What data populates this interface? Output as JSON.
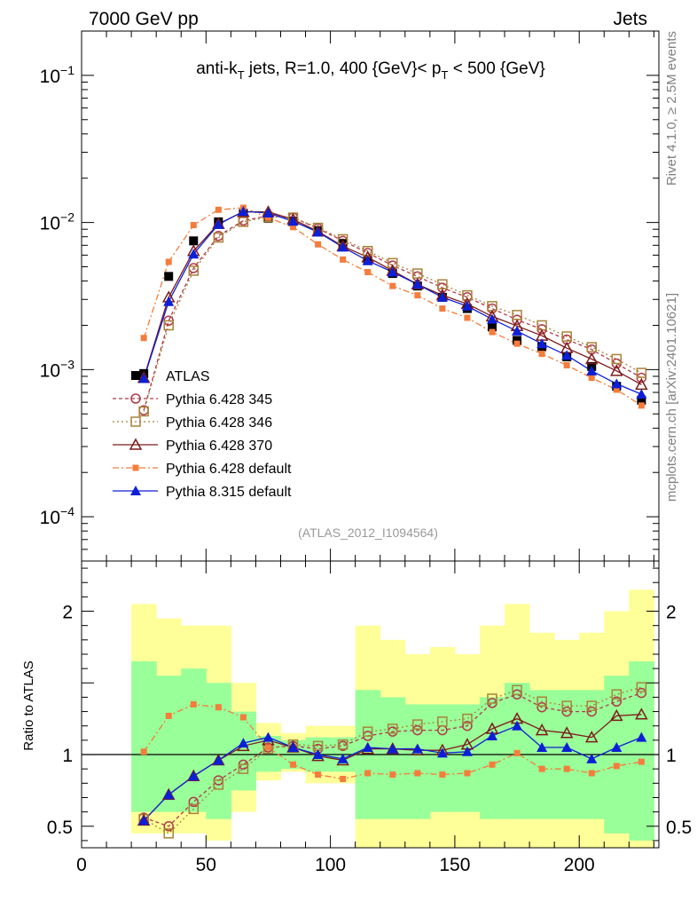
{
  "header": {
    "left": "7000 GeV pp",
    "right": "Jets"
  },
  "side": {
    "rivet": "Rivet 4.1.0, ≥ 2.5M events",
    "mcplots": "mcplots.cern.ch [arXiv:2401.10621]"
  },
  "chart_data": {
    "type": "line",
    "title": "anti-kT jets, R=1.0, 400 {GeV}< pT < 500 {GeV}",
    "title_parts": {
      "a": "anti-k",
      "a_sub": "T",
      "b": " jets, R=1.0, 400 {GeV}< p",
      "b_sub": "T",
      "c": " < 500 {GeV}"
    },
    "analysis_id": "(ATLAS_2012_I1094564)",
    "xlim": [
      0,
      232
    ],
    "ylim_top": [
      5e-05,
      0.2
    ],
    "ylim_ratio": [
      0.35,
      2.35
    ],
    "ratio_ylabel": "Ratio to ATLAS",
    "x_ticks": [
      "0",
      "50",
      "100",
      "150",
      "200"
    ],
    "x_tick_values": [
      0,
      50,
      100,
      150,
      200
    ],
    "y_ticks_top": [
      {
        "value": 0.1,
        "base": "10",
        "exp": "−1"
      },
      {
        "value": 0.01,
        "base": "10",
        "exp": "−2"
      },
      {
        "value": 0.001,
        "base": "10",
        "exp": "−3"
      },
      {
        "value": 0.0001,
        "base": "10",
        "exp": "−4"
      }
    ],
    "y_ticks_ratio": [
      {
        "value": 2,
        "label": "2"
      },
      {
        "value": 1,
        "label": "1"
      },
      {
        "value": 0.5,
        "label": "0.5"
      }
    ],
    "x": [
      25,
      35,
      45,
      55,
      65,
      75,
      85,
      95,
      105,
      115,
      125,
      135,
      145,
      155,
      165,
      175,
      185,
      195,
      205,
      215,
      225
    ],
    "band_edges": [
      20,
      30,
      40,
      50,
      60,
      70,
      80,
      90,
      100,
      110,
      120,
      130,
      140,
      150,
      160,
      170,
      180,
      190,
      200,
      210,
      220,
      230
    ],
    "band_yellow": [
      [
        0.45,
        2.05
      ],
      [
        0.45,
        1.95
      ],
      [
        0.45,
        1.9
      ],
      [
        0.4,
        1.9
      ],
      [
        0.6,
        1.5
      ],
      [
        0.82,
        1.22
      ],
      [
        0.88,
        1.15
      ],
      [
        0.8,
        1.2
      ],
      [
        0.8,
        1.2
      ],
      [
        0.3,
        1.9
      ],
      [
        0.3,
        1.8
      ],
      [
        0.3,
        1.7
      ],
      [
        0.3,
        1.75
      ],
      [
        0.3,
        1.7
      ],
      [
        0.3,
        1.9
      ],
      [
        0.3,
        2.05
      ],
      [
        0.3,
        1.85
      ],
      [
        0.3,
        1.8
      ],
      [
        0.3,
        1.85
      ],
      [
        0.3,
        2.0
      ],
      [
        0.3,
        2.15
      ]
    ],
    "band_green": [
      [
        0.6,
        1.65
      ],
      [
        0.6,
        1.55
      ],
      [
        0.6,
        1.6
      ],
      [
        0.55,
        1.5
      ],
      [
        0.75,
        1.3
      ],
      [
        0.88,
        1.13
      ],
      [
        0.9,
        1.1
      ],
      [
        0.88,
        1.12
      ],
      [
        0.88,
        1.12
      ],
      [
        0.55,
        1.45
      ],
      [
        0.55,
        1.4
      ],
      [
        0.55,
        1.35
      ],
      [
        0.6,
        1.35
      ],
      [
        0.6,
        1.35
      ],
      [
        0.55,
        1.4
      ],
      [
        0.55,
        1.5
      ],
      [
        0.55,
        1.45
      ],
      [
        0.55,
        1.45
      ],
      [
        0.55,
        1.45
      ],
      [
        0.45,
        1.55
      ],
      [
        0.4,
        1.65
      ]
    ],
    "atlas": [
      0.00094,
      0.0043,
      0.0075,
      0.0101,
      0.0115,
      0.0107,
      0.0102,
      0.0088,
      0.0072,
      0.0055,
      0.0045,
      0.0037,
      0.0031,
      0.0026,
      0.00195,
      0.00158,
      0.00143,
      0.00122,
      0.00105,
      0.00077,
      0.00062
    ],
    "legend_data_label": "ATLAS",
    "series": [
      {
        "name": "Pythia 6.428 345",
        "color": "#b03a48",
        "dash": "4,3",
        "marker": "circle-open",
        "values": [
          0.00053,
          0.00215,
          0.0049,
          0.0081,
          0.0103,
          0.0111,
          0.0108,
          0.0091,
          0.0075,
          0.0062,
          0.0051,
          0.0043,
          0.0036,
          0.0031,
          0.0026,
          0.00218,
          0.00188,
          0.0016,
          0.00137,
          0.0011,
          0.00088
        ]
      },
      {
        "name": "Pythia 6.428 346",
        "color": "#a8823a",
        "dash": "2,3",
        "marker": "square-open",
        "values": [
          0.00052,
          0.002,
          0.0047,
          0.0079,
          0.0101,
          0.0109,
          0.0108,
          0.0092,
          0.0077,
          0.0064,
          0.0053,
          0.0045,
          0.0038,
          0.0032,
          0.0027,
          0.00235,
          0.002,
          0.00168,
          0.00142,
          0.00118,
          0.00095
        ]
      },
      {
        "name": "Pythia 6.428 370",
        "color": "#7d1a1a",
        "dash": "",
        "marker": "triangle-open",
        "values": [
          0.00088,
          0.0031,
          0.0064,
          0.0098,
          0.0118,
          0.0118,
          0.0105,
          0.0087,
          0.0069,
          0.0058,
          0.0047,
          0.0038,
          0.0032,
          0.0028,
          0.0023,
          0.00198,
          0.0017,
          0.0014,
          0.00118,
          0.00098,
          0.00079
        ]
      },
      {
        "name": "Pythia 6.428 default",
        "color": "#f47c3c",
        "dash": "7,3,2,3",
        "marker": "square-filled-small",
        "values": [
          0.00164,
          0.0054,
          0.0096,
          0.0122,
          0.0126,
          0.0108,
          0.0093,
          0.0071,
          0.0056,
          0.0046,
          0.0037,
          0.0032,
          0.0026,
          0.00225,
          0.0018,
          0.0015,
          0.00128,
          0.00107,
          0.00088,
          0.00073,
          0.00057
        ]
      },
      {
        "name": "Pythia 8.315 default",
        "color": "#0c1fd6",
        "dash": "",
        "marker": "triangle-filled",
        "values": [
          0.00087,
          0.0029,
          0.0061,
          0.0097,
          0.0119,
          0.0116,
          0.0102,
          0.0086,
          0.0068,
          0.0055,
          0.0046,
          0.0038,
          0.0031,
          0.0027,
          0.0022,
          0.00183,
          0.0015,
          0.00125,
          0.00098,
          0.0008,
          0.00068
        ]
      }
    ],
    "ratios": [
      [
        0.56,
        0.5,
        0.67,
        0.82,
        0.93,
        1.05,
        1.06,
        1.04,
        1.06,
        1.13,
        1.16,
        1.17,
        1.17,
        1.2,
        1.36,
        1.42,
        1.33,
        1.3,
        1.3,
        1.37,
        1.43
      ],
      [
        0.55,
        0.45,
        0.62,
        0.79,
        0.9,
        1.04,
        1.07,
        1.06,
        1.07,
        1.16,
        1.18,
        1.21,
        1.23,
        1.25,
        1.39,
        1.45,
        1.37,
        1.34,
        1.34,
        1.42,
        1.47
      ],
      [
        0.54,
        0.72,
        0.85,
        0.96,
        1.06,
        1.1,
        1.05,
        0.99,
        0.96,
        1.04,
        1.04,
        1.03,
        1.03,
        1.07,
        1.18,
        1.25,
        1.17,
        1.15,
        1.12,
        1.27,
        1.28
      ],
      [
        1.02,
        1.27,
        1.35,
        1.33,
        1.26,
        1.05,
        0.93,
        0.86,
        0.83,
        0.87,
        0.86,
        0.87,
        0.86,
        0.87,
        0.93,
        1.01,
        0.9,
        0.9,
        0.87,
        0.92,
        0.95
      ],
      [
        0.54,
        0.72,
        0.85,
        0.96,
        1.08,
        1.12,
        1.05,
        1.0,
        0.97,
        1.05,
        1.04,
        1.04,
        1.01,
        1.02,
        1.13,
        1.2,
        1.05,
        1.05,
        0.97,
        1.05,
        1.12
      ]
    ]
  }
}
